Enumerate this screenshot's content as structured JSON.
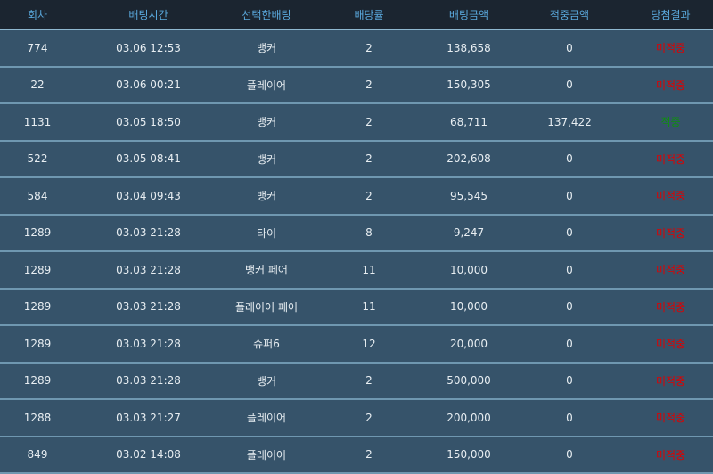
{
  "columns": [
    "회차",
    "배팅시간",
    "선택한배팅",
    "배당률",
    "배팅금액",
    "적중금액",
    "당첨결과"
  ],
  "colors": {
    "header_bg": "#1b2530",
    "header_text": "#5aa9dd",
    "row_bg": "#36536a",
    "lose": "#e00000",
    "win": "#0f8f0f"
  },
  "rows": [
    {
      "round": "774",
      "time": "03.06 12:53",
      "bet": "뱅커",
      "odds": "2",
      "amount": "138,658",
      "payout": "0",
      "result": "미적중",
      "status": "lose"
    },
    {
      "round": "22",
      "time": "03.06 00:21",
      "bet": "플레이어",
      "odds": "2",
      "amount": "150,305",
      "payout": "0",
      "result": "미적중",
      "status": "lose"
    },
    {
      "round": "1131",
      "time": "03.05 18:50",
      "bet": "뱅커",
      "odds": "2",
      "amount": "68,711",
      "payout": "137,422",
      "result": "적중",
      "status": "win"
    },
    {
      "round": "522",
      "time": "03.05 08:41",
      "bet": "뱅커",
      "odds": "2",
      "amount": "202,608",
      "payout": "0",
      "result": "미적중",
      "status": "lose"
    },
    {
      "round": "584",
      "time": "03.04 09:43",
      "bet": "뱅커",
      "odds": "2",
      "amount": "95,545",
      "payout": "0",
      "result": "미적중",
      "status": "lose"
    },
    {
      "round": "1289",
      "time": "03.03 21:28",
      "bet": "타이",
      "odds": "8",
      "amount": "9,247",
      "payout": "0",
      "result": "미적중",
      "status": "lose"
    },
    {
      "round": "1289",
      "time": "03.03 21:28",
      "bet": "뱅커 페어",
      "odds": "11",
      "amount": "10,000",
      "payout": "0",
      "result": "미적중",
      "status": "lose"
    },
    {
      "round": "1289",
      "time": "03.03 21:28",
      "bet": "플레이어 페어",
      "odds": "11",
      "amount": "10,000",
      "payout": "0",
      "result": "미적중",
      "status": "lose"
    },
    {
      "round": "1289",
      "time": "03.03 21:28",
      "bet": "슈퍼6",
      "odds": "12",
      "amount": "20,000",
      "payout": "0",
      "result": "미적중",
      "status": "lose"
    },
    {
      "round": "1289",
      "time": "03.03 21:28",
      "bet": "뱅커",
      "odds": "2",
      "amount": "500,000",
      "payout": "0",
      "result": "미적중",
      "status": "lose"
    },
    {
      "round": "1288",
      "time": "03.03 21:27",
      "bet": "플레이어",
      "odds": "2",
      "amount": "200,000",
      "payout": "0",
      "result": "미적중",
      "status": "lose"
    },
    {
      "round": "849",
      "time": "03.02 14:08",
      "bet": "플레이어",
      "odds": "2",
      "amount": "150,000",
      "payout": "0",
      "result": "미적중",
      "status": "lose"
    }
  ]
}
